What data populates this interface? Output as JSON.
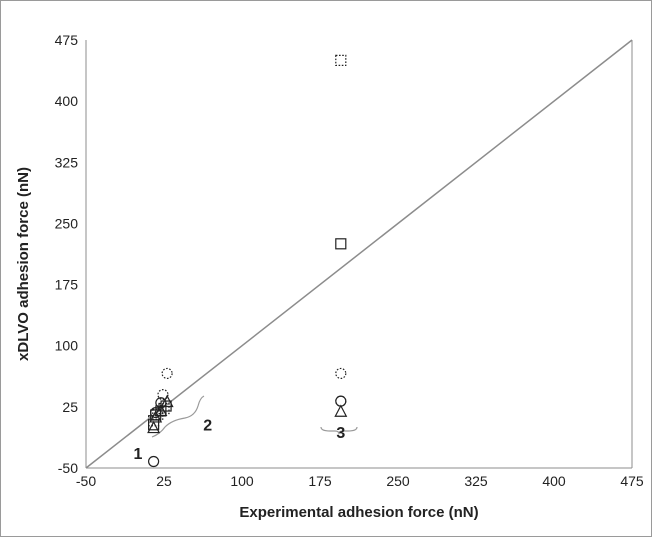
{
  "chart_data": {
    "type": "scatter",
    "xlabel": "Experimental adhesion force (nN)",
    "ylabel": "xDLVO adhesion force (nN)",
    "xlim": [
      -50,
      475
    ],
    "ylim": [
      -50,
      475
    ],
    "x_ticks": [
      "-50",
      "25",
      "100",
      "175",
      "250",
      "325",
      "400",
      "475"
    ],
    "y_ticks": [
      "-50",
      "25",
      "100",
      "175",
      "250",
      "325",
      "400",
      "475"
    ],
    "legend": "none",
    "grid": false,
    "reference_line": {
      "from": [
        -50,
        -50
      ],
      "to": [
        475,
        475
      ],
      "color": "#8c8c8c"
    },
    "series": [
      {
        "marker": "circle",
        "style": "solid",
        "points": [
          [
            15,
            -42
          ],
          [
            17,
            18
          ],
          [
            22,
            30
          ],
          [
            195,
            32
          ]
        ]
      },
      {
        "marker": "circle",
        "style": "dotted",
        "points": [
          [
            28,
            66
          ],
          [
            24,
            40
          ],
          [
            195,
            66
          ],
          [
            195,
            32
          ]
        ]
      },
      {
        "marker": "square",
        "style": "solid",
        "points": [
          [
            15,
            3
          ],
          [
            17,
            15
          ],
          [
            22,
            20
          ],
          [
            27,
            26
          ],
          [
            195,
            225
          ]
        ]
      },
      {
        "marker": "square",
        "style": "dotted",
        "points": [
          [
            15,
            8
          ],
          [
            19,
            16
          ],
          [
            25,
            23
          ],
          [
            195,
            450
          ]
        ]
      },
      {
        "marker": "triangle",
        "style": "solid",
        "points": [
          [
            15,
            -1
          ],
          [
            17,
            12
          ],
          [
            22,
            20
          ],
          [
            28,
            31
          ],
          [
            195,
            19
          ]
        ]
      }
    ],
    "annotations": [
      {
        "text": "1",
        "x": 0,
        "y": -39
      },
      {
        "text": "2",
        "x": 67,
        "y": -4
      },
      {
        "text": "3",
        "x": 195,
        "y": -13
      }
    ],
    "brace_color": "#9a9a9a"
  }
}
